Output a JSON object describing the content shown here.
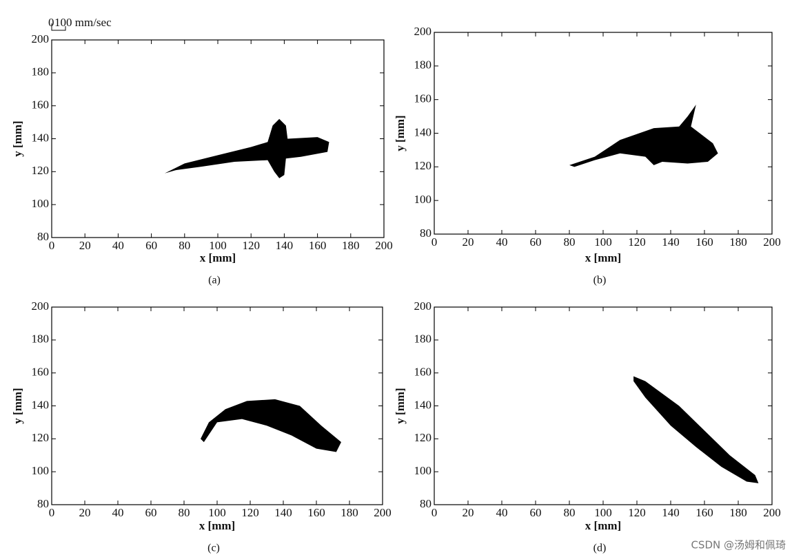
{
  "chart_data": [
    {
      "type": "vector-field",
      "caption": "(a)",
      "xlabel": "x [mm]",
      "ylabel": "y [mm]",
      "scale_labels": [
        "0",
        "100 mm/sec"
      ],
      "xlim": [
        0,
        200
      ],
      "ylim": [
        80,
        200
      ],
      "xticks": [
        0,
        20,
        40,
        60,
        80,
        100,
        120,
        140,
        160,
        180,
        200
      ],
      "yticks": [
        80,
        100,
        120,
        140,
        160,
        180,
        200
      ]
    },
    {
      "type": "vector-field",
      "caption": "(b)",
      "xlabel": "x [mm]",
      "ylabel": "y [mm]",
      "xlim": [
        0,
        200
      ],
      "ylim": [
        80,
        200
      ],
      "xticks": [
        0,
        20,
        40,
        60,
        80,
        100,
        120,
        140,
        160,
        180,
        200
      ],
      "yticks": [
        80,
        100,
        120,
        140,
        160,
        180,
        200
      ]
    },
    {
      "type": "vector-field",
      "caption": "(c)",
      "xlabel": "x [mm]",
      "ylabel": "y [mm]",
      "xlim": [
        0,
        200
      ],
      "ylim": [
        80,
        200
      ],
      "xticks": [
        0,
        20,
        40,
        60,
        80,
        100,
        120,
        140,
        160,
        180,
        200
      ],
      "yticks": [
        80,
        100,
        120,
        140,
        160,
        180,
        200
      ]
    },
    {
      "type": "vector-field",
      "caption": "(d)",
      "xlabel": "x [mm]",
      "ylabel": "y [mm]",
      "xlim": [
        0,
        200
      ],
      "ylim": [
        80,
        200
      ],
      "xticks": [
        0,
        20,
        40,
        60,
        80,
        100,
        120,
        140,
        160,
        180,
        200
      ],
      "yticks": [
        80,
        100,
        120,
        140,
        160,
        180,
        200
      ]
    }
  ],
  "watermark": "CSDN @汤姆和佩琦"
}
